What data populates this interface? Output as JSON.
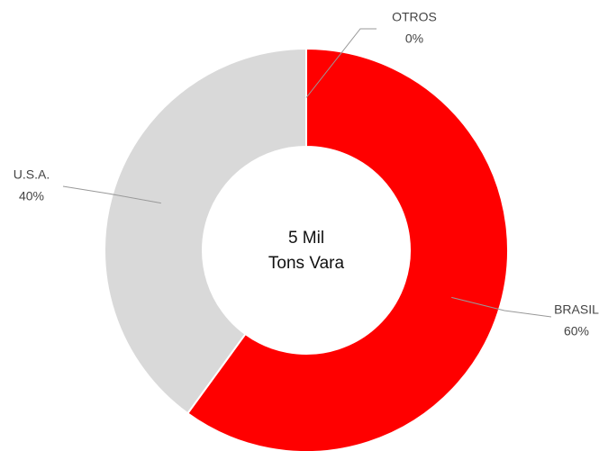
{
  "chart_data": {
    "type": "donut",
    "categories": [
      "BRASIL",
      "U.S.A.",
      "OTROS"
    ],
    "values": [
      60,
      40,
      0
    ],
    "value_labels": [
      "60%",
      "40%",
      "0%"
    ],
    "colors": [
      "#ff0000",
      "#d9d9d9",
      "#a6a6a6"
    ],
    "center_label": [
      "5 Mil",
      "Tons Vara"
    ]
  }
}
